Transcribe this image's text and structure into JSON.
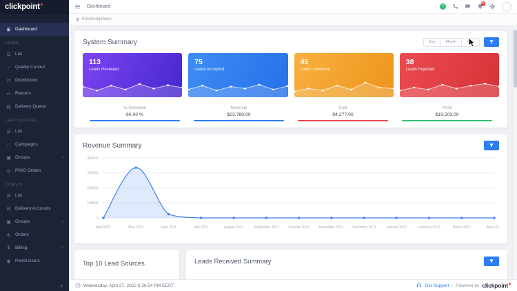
{
  "sidebar": {
    "logo": "clickpoint",
    "sections": [
      {
        "label": "",
        "items": [
          {
            "label": "Dashboard",
            "icon": "dashboard-icon",
            "active": true
          }
        ]
      },
      {
        "label": "Leads",
        "items": [
          {
            "label": "List",
            "icon": "list-icon"
          },
          {
            "label": "Quality Control",
            "icon": "quality-control-icon"
          },
          {
            "label": "Distribution",
            "icon": "distribution-icon"
          },
          {
            "label": "Returns",
            "icon": "returns-icon"
          },
          {
            "label": "Delivery Queue",
            "icon": "delivery-queue-icon"
          }
        ]
      },
      {
        "label": "Lead Sources",
        "items": [
          {
            "label": "List",
            "icon": "list-icon"
          },
          {
            "label": "Campaigns",
            "icon": "campaigns-icon"
          },
          {
            "label": "Groups",
            "icon": "groups-icon",
            "expandable": true
          },
          {
            "label": "PING Orders",
            "icon": "ping-orders-icon"
          }
        ]
      },
      {
        "label": "Clients",
        "items": [
          {
            "label": "List",
            "icon": "list-icon"
          },
          {
            "label": "Delivery Accounts",
            "icon": "delivery-accounts-icon"
          },
          {
            "label": "Groups",
            "icon": "groups-icon",
            "expandable": true
          },
          {
            "label": "Orders",
            "icon": "orders-icon"
          },
          {
            "label": "Billing",
            "icon": "billing-icon",
            "expandable": true
          },
          {
            "label": "Portal Users",
            "icon": "portal-users-icon"
          }
        ]
      }
    ]
  },
  "header": {
    "title": "Dashboard",
    "notification_count": "1"
  },
  "breadcrumb": {
    "label": "Knowledgebase"
  },
  "system_summary": {
    "title": "System Summary",
    "period_options": [
      "Day",
      "Month",
      "Year"
    ],
    "cards": [
      {
        "value": "113",
        "label": "Leads Received",
        "color_from": "#7c44f2",
        "color_to": "#4527cf",
        "spark": [
          55,
          35,
          60,
          40,
          68,
          45,
          62,
          50
        ]
      },
      {
        "value": "75",
        "label": "Leads Accepted",
        "color_from": "#3f8cf3",
        "color_to": "#2571ea",
        "spark": [
          40,
          60,
          35,
          55,
          45,
          65,
          40,
          58
        ]
      },
      {
        "value": "45",
        "label": "Leads Delivered",
        "color_from": "#f7b03f",
        "color_to": "#ee951d",
        "spark": [
          30,
          45,
          35,
          60,
          40,
          75,
          50,
          45
        ]
      },
      {
        "value": "38",
        "label": "Leads Rejected",
        "color_from": "#ea4b50",
        "color_to": "#d63338",
        "spark": [
          35,
          50,
          40,
          65,
          45,
          60,
          70,
          55
        ]
      }
    ],
    "metrics": [
      {
        "label": "% Delivered",
        "value": "60.00 %",
        "color": "#2e7cf6"
      },
      {
        "label": "Revenue",
        "value": "$23,780.00",
        "color": "#2e7cf6"
      },
      {
        "label": "Cost",
        "value": "$4,277.00",
        "color": "#e8484d"
      },
      {
        "label": "Profit",
        "value": "$19,503.00",
        "color": "#2fbf71"
      }
    ]
  },
  "revenue_summary": {
    "title": "Revenue Summary"
  },
  "chart_data": {
    "type": "line",
    "title": "Revenue Summary",
    "x": [
      "April 2021",
      "May 2021",
      "June 2021",
      "July 2021",
      "August 2021",
      "September 2021",
      "October 2021",
      "November 2021",
      "December 2021",
      "January 2022",
      "February 2022",
      "March 2022",
      "April 2022"
    ],
    "series": [
      {
        "name": "Revenue",
        "values": [
          0,
          335000,
          25000,
          0,
          0,
          0,
          0,
          0,
          0,
          0,
          0,
          0,
          0
        ]
      }
    ],
    "ylim": [
      0,
      400000
    ],
    "yticks": [
      0,
      100000,
      200000,
      300000,
      400000
    ],
    "grid": true,
    "legend": false,
    "line_color": "#3d7ff0",
    "fill_color": "rgba(61,127,240,0.16)"
  },
  "bottom_panels": {
    "left_title": "Top 10 Lead Sources",
    "right_title": "Leads Received Summary"
  },
  "footer": {
    "datetime": "Wednesday, April 27, 2022 6:26:54 PM EEST",
    "get_support": "Get Support",
    "separator": "|",
    "powered_by": "Powered by",
    "brand": "clickpoint"
  }
}
